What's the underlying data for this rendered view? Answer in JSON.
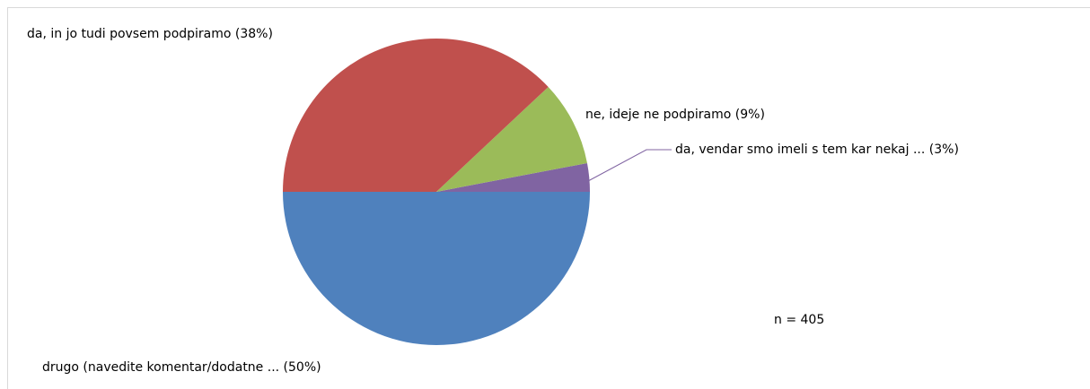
{
  "chart_data": {
    "type": "pie",
    "categories": [
      "drugo (navedite komentar/dodatne ... (50%)",
      "da, vendar smo imeli s tem kar nekaj ... (3%)",
      "ne, ideje ne podpiramo (9%)",
      "da, in jo tudi povsem podpiramo (38%)"
    ],
    "values": [
      50,
      3,
      9,
      38
    ],
    "colors": [
      "#4f81bd",
      "#8064a2",
      "#9bbb59",
      "#c0504d"
    ],
    "annotation": "n = 405"
  }
}
